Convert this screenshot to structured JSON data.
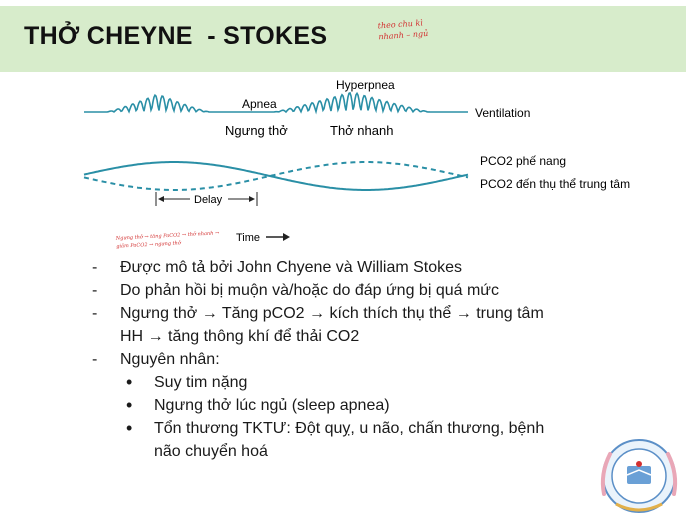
{
  "slide": {
    "title": "THỞ CHEYNE  - STOKES",
    "handnote_top": "theo chu kì nhanh – ngủ",
    "handnote_left": "Ngưng thở → tăng PaCO2 → thở nhanh → giảm PaCO2 → ngưng thở"
  },
  "diagram": {
    "labels": {
      "hyperpnea": "Hyperpnea",
      "apnea": "Apnea",
      "ventilation": "Ventilation",
      "ngung_tho": "Ngưng thở",
      "tho_nhanh": "Thở nhanh",
      "pco2_phe_nang": "PCO2 phế nang",
      "pco2_than_the": "PCO2 đến thụ thể trung tâm",
      "delay": "Delay",
      "time": "Time"
    },
    "colors": {
      "wave": "#2a8fa6",
      "text": "#222222"
    }
  },
  "bullets": {
    "b1": "Được mô tả bởi John Chyene và William Stokes",
    "b2": "Do phản hồi bị muộn và/hoặc do đáp ứng bị quá mức",
    "b3_part1": "Ngưng thở ",
    "b3_part2": " Tăng pCO2 ",
    "b3_part3": " kích thích thụ thể ",
    "b3_part4": " trung tâm",
    "b3_line2_part1": "HH ",
    "b3_line2_part2": " tăng thông khí để thải CO2",
    "b4": "Nguyên nhân:",
    "sub1": "Suy tim nặng",
    "sub2": "Ngưng thở lúc ngủ (sleep apnea)",
    "sub3_line1": "Tổn thương TKTƯ: Đột quỵ, u não, chấn thương, bệnh",
    "sub3_line2": "não chuyển hoá",
    "dash": "-",
    "bullet_dot": "•",
    "arrow": "→"
  }
}
